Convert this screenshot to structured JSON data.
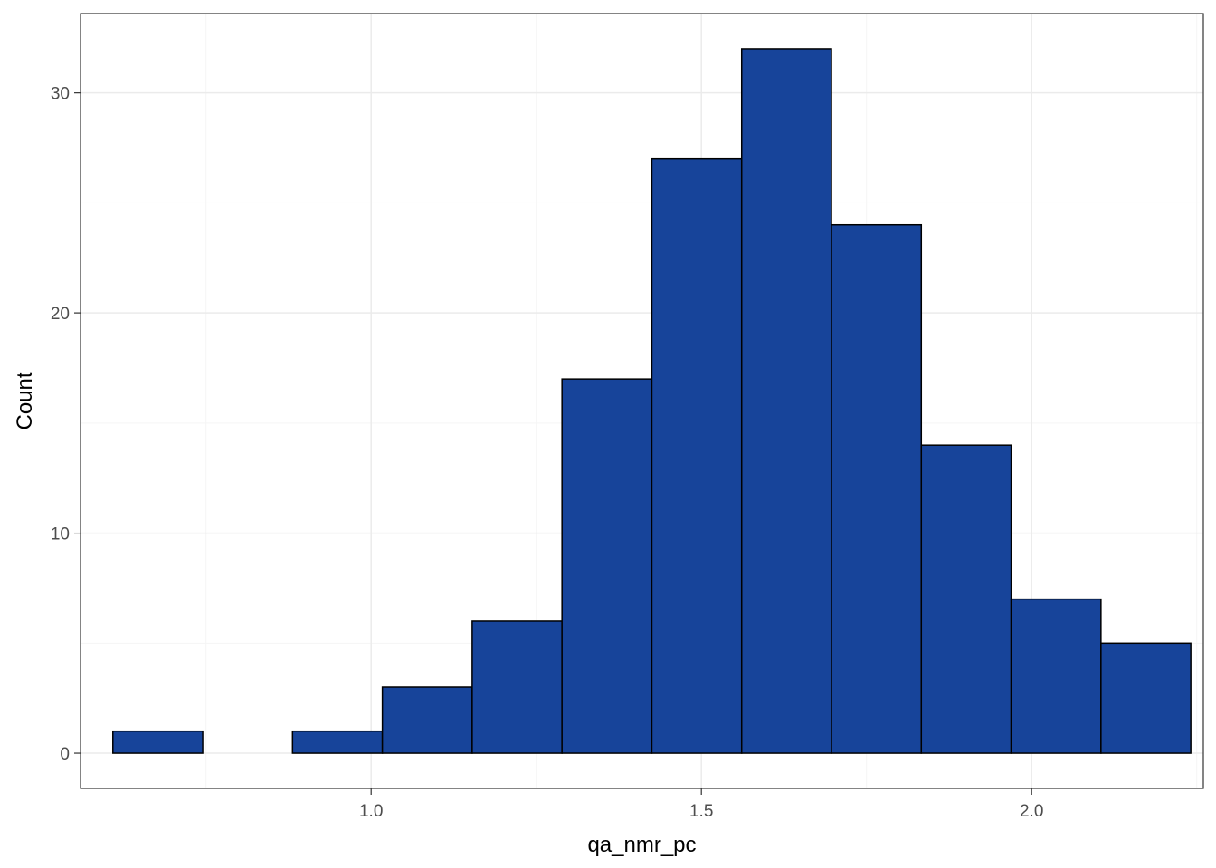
{
  "chart_data": {
    "type": "bar",
    "subtype": "histogram",
    "xlabel": "qa_nmr_pc",
    "ylabel": "Count",
    "xlim": [
      0.56,
      2.26
    ],
    "ylim": [
      -1.6,
      33.6
    ],
    "x_ticks": [
      1.0,
      1.5,
      2.0
    ],
    "x_tick_labels": [
      "1.0",
      "1.5",
      "2.0"
    ],
    "y_ticks": [
      0,
      10,
      20,
      30
    ],
    "y_tick_labels": [
      "0",
      "10",
      "20",
      "30"
    ],
    "bin_width": 0.136,
    "bins": [
      {
        "x0": 0.609,
        "x1": 0.745,
        "count": 1
      },
      {
        "x0": 0.745,
        "x1": 0.881,
        "count": 0
      },
      {
        "x0": 0.881,
        "x1": 1.017,
        "count": 1
      },
      {
        "x0": 1.017,
        "x1": 1.153,
        "count": 3
      },
      {
        "x0": 1.153,
        "x1": 1.289,
        "count": 6
      },
      {
        "x0": 1.289,
        "x1": 1.425,
        "count": 17
      },
      {
        "x0": 1.425,
        "x1": 1.561,
        "count": 27
      },
      {
        "x0": 1.561,
        "x1": 1.697,
        "count": 32
      },
      {
        "x0": 1.697,
        "x1": 1.833,
        "count": 24
      },
      {
        "x0": 1.833,
        "x1": 1.969,
        "count": 14
      },
      {
        "x0": 1.969,
        "x1": 2.105,
        "count": 7
      },
      {
        "x0": 2.105,
        "x1": 2.241,
        "count": 5
      }
    ],
    "grid": true,
    "legend": "none",
    "colors": {
      "bar_fill": "#17449A",
      "bar_outline": "#000000",
      "grid_major": "#EBEBEB",
      "grid_minor": "#F5F5F5",
      "panel_border": "#333333"
    }
  }
}
